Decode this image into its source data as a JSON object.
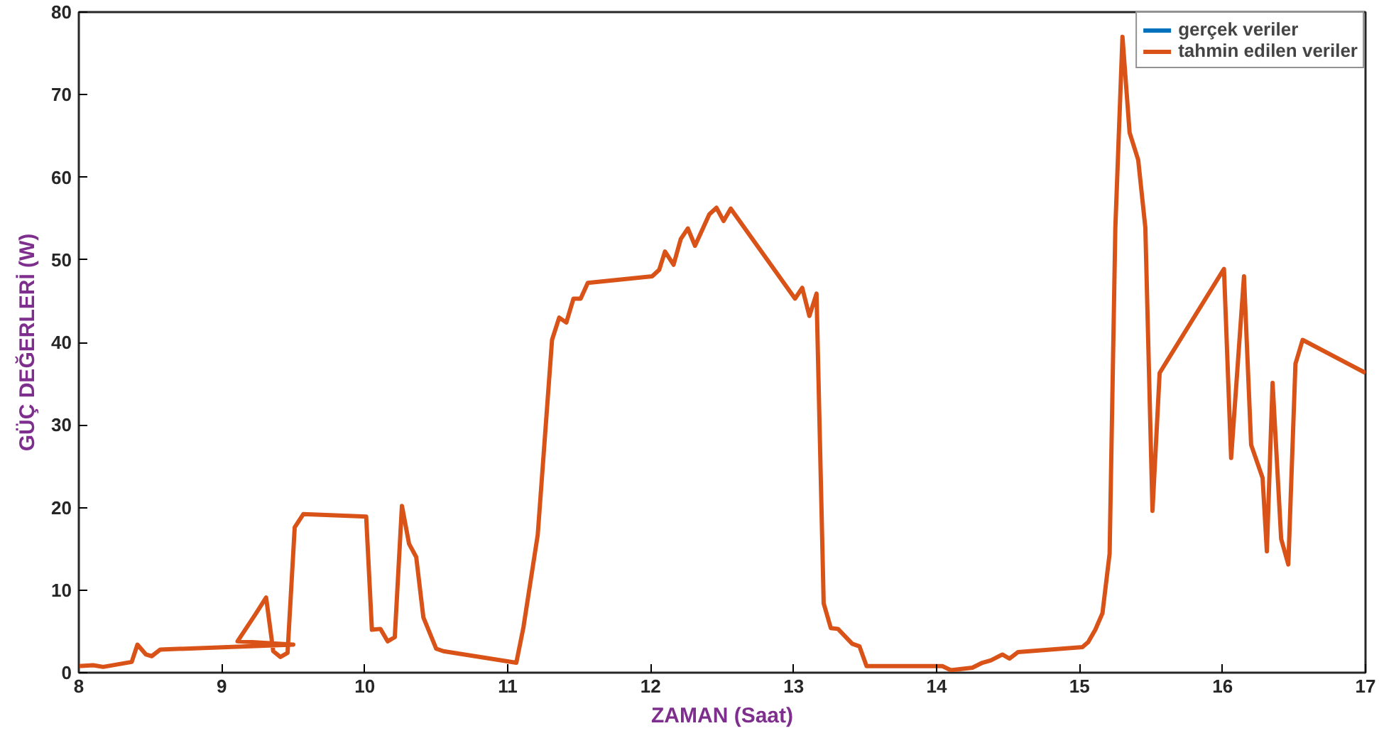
{
  "chart_data": {
    "type": "line",
    "xlabel": "ZAMAN (Saat)",
    "ylabel": "GÜÇ DEĞERLERİ (W)",
    "xlim": [
      8,
      17
    ],
    "ylim": [
      0,
      80
    ],
    "xticks": [
      8,
      9,
      10,
      11,
      12,
      13,
      14,
      15,
      16,
      17
    ],
    "yticks": [
      0,
      10,
      20,
      30,
      40,
      50,
      60,
      70,
      80
    ],
    "grid": false,
    "legend": "top right",
    "line_style": "solid",
    "marker": "none",
    "x": [
      8.0,
      8.1,
      8.17,
      8.37,
      8.41,
      8.47,
      8.51,
      8.57,
      9.5,
      9.11,
      9.24,
      9.31,
      9.36,
      9.41,
      9.46,
      9.51,
      9.57,
      10.01,
      10.05,
      10.11,
      10.16,
      10.21,
      10.26,
      10.31,
      10.36,
      10.41,
      10.5,
      10.55,
      11.06,
      11.11,
      11.21,
      11.31,
      11.36,
      11.41,
      11.46,
      11.51,
      11.56,
      12.01,
      12.06,
      12.1,
      12.16,
      12.21,
      12.26,
      12.31,
      12.41,
      12.46,
      12.51,
      12.56,
      13.01,
      13.06,
      13.11,
      13.16,
      13.21,
      13.26,
      13.31,
      13.41,
      13.46,
      13.51,
      14.04,
      14.1,
      14.25,
      14.32,
      14.38,
      14.46,
      14.51,
      14.57,
      15.02,
      15.06,
      15.11,
      15.16,
      15.21,
      15.25,
      15.3,
      15.35,
      15.41,
      15.46,
      15.51,
      15.56,
      16.01,
      16.06,
      16.15,
      16.2,
      16.28,
      16.31,
      16.35,
      16.41,
      16.46,
      16.51,
      16.56,
      17.0
    ],
    "series": [
      {
        "name": "gerçek veriler",
        "color": "#0072bd",
        "values": [
          null,
          null,
          null,
          null,
          null,
          null,
          null,
          null,
          null,
          null,
          null,
          null,
          null,
          null,
          null,
          null,
          null,
          null,
          null,
          null,
          null,
          null,
          null,
          null,
          null,
          null,
          null,
          null,
          null,
          null,
          null,
          null,
          null,
          null,
          null,
          null,
          null,
          null,
          null,
          null,
          null,
          null,
          null,
          null,
          null,
          null,
          null,
          null,
          null,
          null,
          null,
          null,
          null,
          null,
          null,
          null,
          null,
          null,
          null,
          null,
          null,
          null,
          null,
          null,
          null,
          null,
          null,
          null,
          null,
          null,
          null,
          null,
          null,
          null,
          null,
          null,
          null,
          null,
          null,
          null,
          null,
          null,
          null,
          null,
          null,
          null,
          null,
          null,
          null,
          null
        ]
      },
      {
        "name": "tahmin edilen veriler",
        "color": "#d95319",
        "values": [
          0.8,
          0.9,
          0.7,
          1.3,
          3.4,
          2.2,
          2.0,
          2.8,
          3.4,
          3.8,
          7.2,
          9.1,
          2.6,
          1.9,
          2.4,
          17.6,
          19.2,
          18.9,
          5.2,
          5.3,
          3.8,
          4.3,
          20.2,
          15.6,
          14.0,
          6.7,
          2.9,
          2.6,
          1.2,
          5.5,
          16.7,
          40.3,
          43.0,
          42.4,
          45.3,
          45.3,
          47.2,
          48.0,
          48.8,
          51.0,
          49.4,
          52.5,
          53.8,
          51.7,
          55.5,
          56.3,
          54.7,
          56.2,
          45.3,
          46.6,
          43.2,
          45.9,
          8.4,
          5.4,
          5.3,
          3.5,
          3.2,
          0.8,
          0.8,
          0.3,
          0.6,
          1.2,
          1.5,
          2.2,
          1.7,
          2.5,
          3.1,
          3.7,
          5.2,
          7.2,
          14.4,
          53.8,
          77,
          65.4,
          62.1,
          53.9,
          19.6,
          36.3,
          48.9,
          26.0,
          48.0,
          27.6,
          23.6,
          14.7,
          35.1,
          16.2,
          13.1,
          37.4,
          40.3,
          36.3
        ]
      }
    ]
  }
}
